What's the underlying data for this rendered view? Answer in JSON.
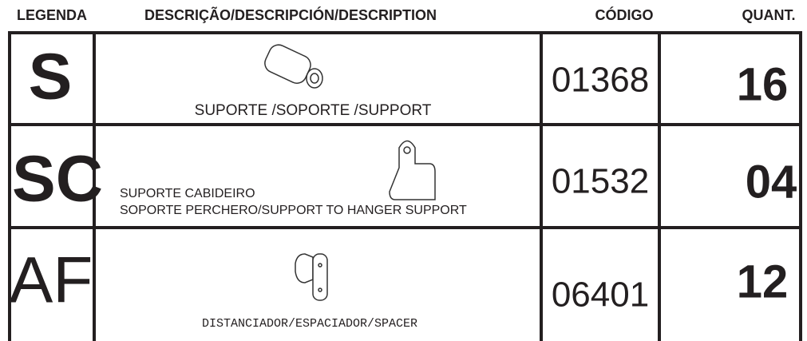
{
  "table": {
    "header": [
      "LEGENDA",
      "DESCRIÇÃO/DESCRIPCIÓN/DESCRIPTION",
      "CÓDIGO",
      "QUANT."
    ],
    "rows": [
      {
        "legend": "S",
        "description": [
          "SUPORTE /SOPORTE /SUPPORT"
        ],
        "code": "01368",
        "quantity": "16"
      },
      {
        "legend": "SC",
        "description": [
          "SUPORTE CABIDEIRO",
          "SOPORTE PERCHERO/SUPPORT TO HANGER SUPPORT"
        ],
        "code": "01532",
        "quantity": "04"
      },
      {
        "legend": "AF",
        "description": [
          "DISTANCIADOR/ESPACIADOR/SPACER"
        ],
        "code": "06401",
        "quantity": "12"
      }
    ]
  }
}
